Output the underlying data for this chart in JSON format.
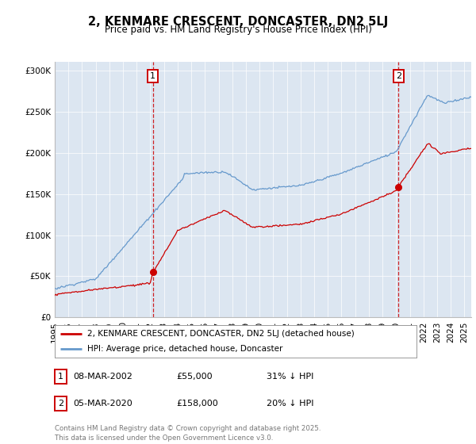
{
  "title": "2, KENMARE CRESCENT, DONCASTER, DN2 5LJ",
  "subtitle": "Price paid vs. HM Land Registry's House Price Index (HPI)",
  "legend_line1": "2, KENMARE CRESCENT, DONCASTER, DN2 5LJ (detached house)",
  "legend_line2": "HPI: Average price, detached house, Doncaster",
  "annotation1_date": "08-MAR-2002",
  "annotation1_price": "£55,000",
  "annotation1_hpi": "31% ↓ HPI",
  "annotation2_date": "05-MAR-2020",
  "annotation2_price": "£158,000",
  "annotation2_hpi": "20% ↓ HPI",
  "footnote": "Contains HM Land Registry data © Crown copyright and database right 2025.\nThis data is licensed under the Open Government Licence v3.0.",
  "sale1_year": 2002.19,
  "sale1_price": 55000,
  "sale2_year": 2020.18,
  "sale2_price": 158000,
  "hpi_color": "#6699cc",
  "price_color": "#cc0000",
  "bg_color": "#dce6f1",
  "ylim": [
    0,
    310000
  ],
  "xlim_start": 1995.0,
  "xlim_end": 2025.5
}
